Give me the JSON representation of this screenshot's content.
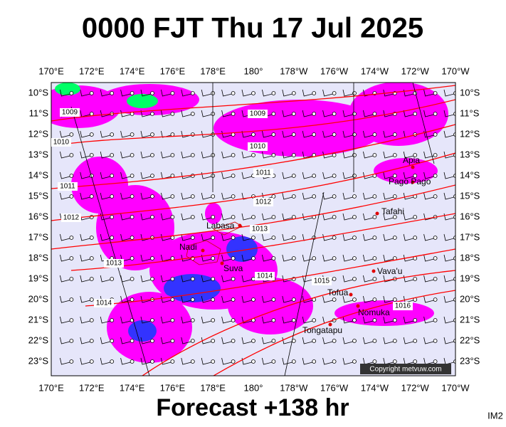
{
  "title": "0000 FJT Thu 17 Jul 2025",
  "footer": "Forecast +138 hr",
  "corner_label": "IM2",
  "copyright": "Copyright metvuw.com",
  "longitude_labels": [
    "170°E",
    "172°E",
    "174°E",
    "176°E",
    "178°E",
    "180°",
    "178°W",
    "176°W",
    "174°W",
    "172°W",
    "170°W"
  ],
  "latitude_labels": [
    "10°S",
    "11°S",
    "12°S",
    "13°S",
    "14°S",
    "15°S",
    "16°S",
    "17°S",
    "18°S",
    "19°S",
    "20°S",
    "21°S",
    "22°S",
    "23°S"
  ],
  "places": [
    "Apia",
    "Pago Pago",
    "Tafahi",
    "Labasa",
    "Nadi",
    "Suva",
    "Vava'u",
    "Tofua",
    "Nomuka",
    "Tongatapu"
  ],
  "isobar_labels": [
    "1009",
    "1009",
    "1010",
    "1010",
    "1011",
    "1011",
    "1012",
    "1012",
    "1013",
    "1013",
    "1014",
    "1014",
    "1015",
    "1016"
  ]
}
